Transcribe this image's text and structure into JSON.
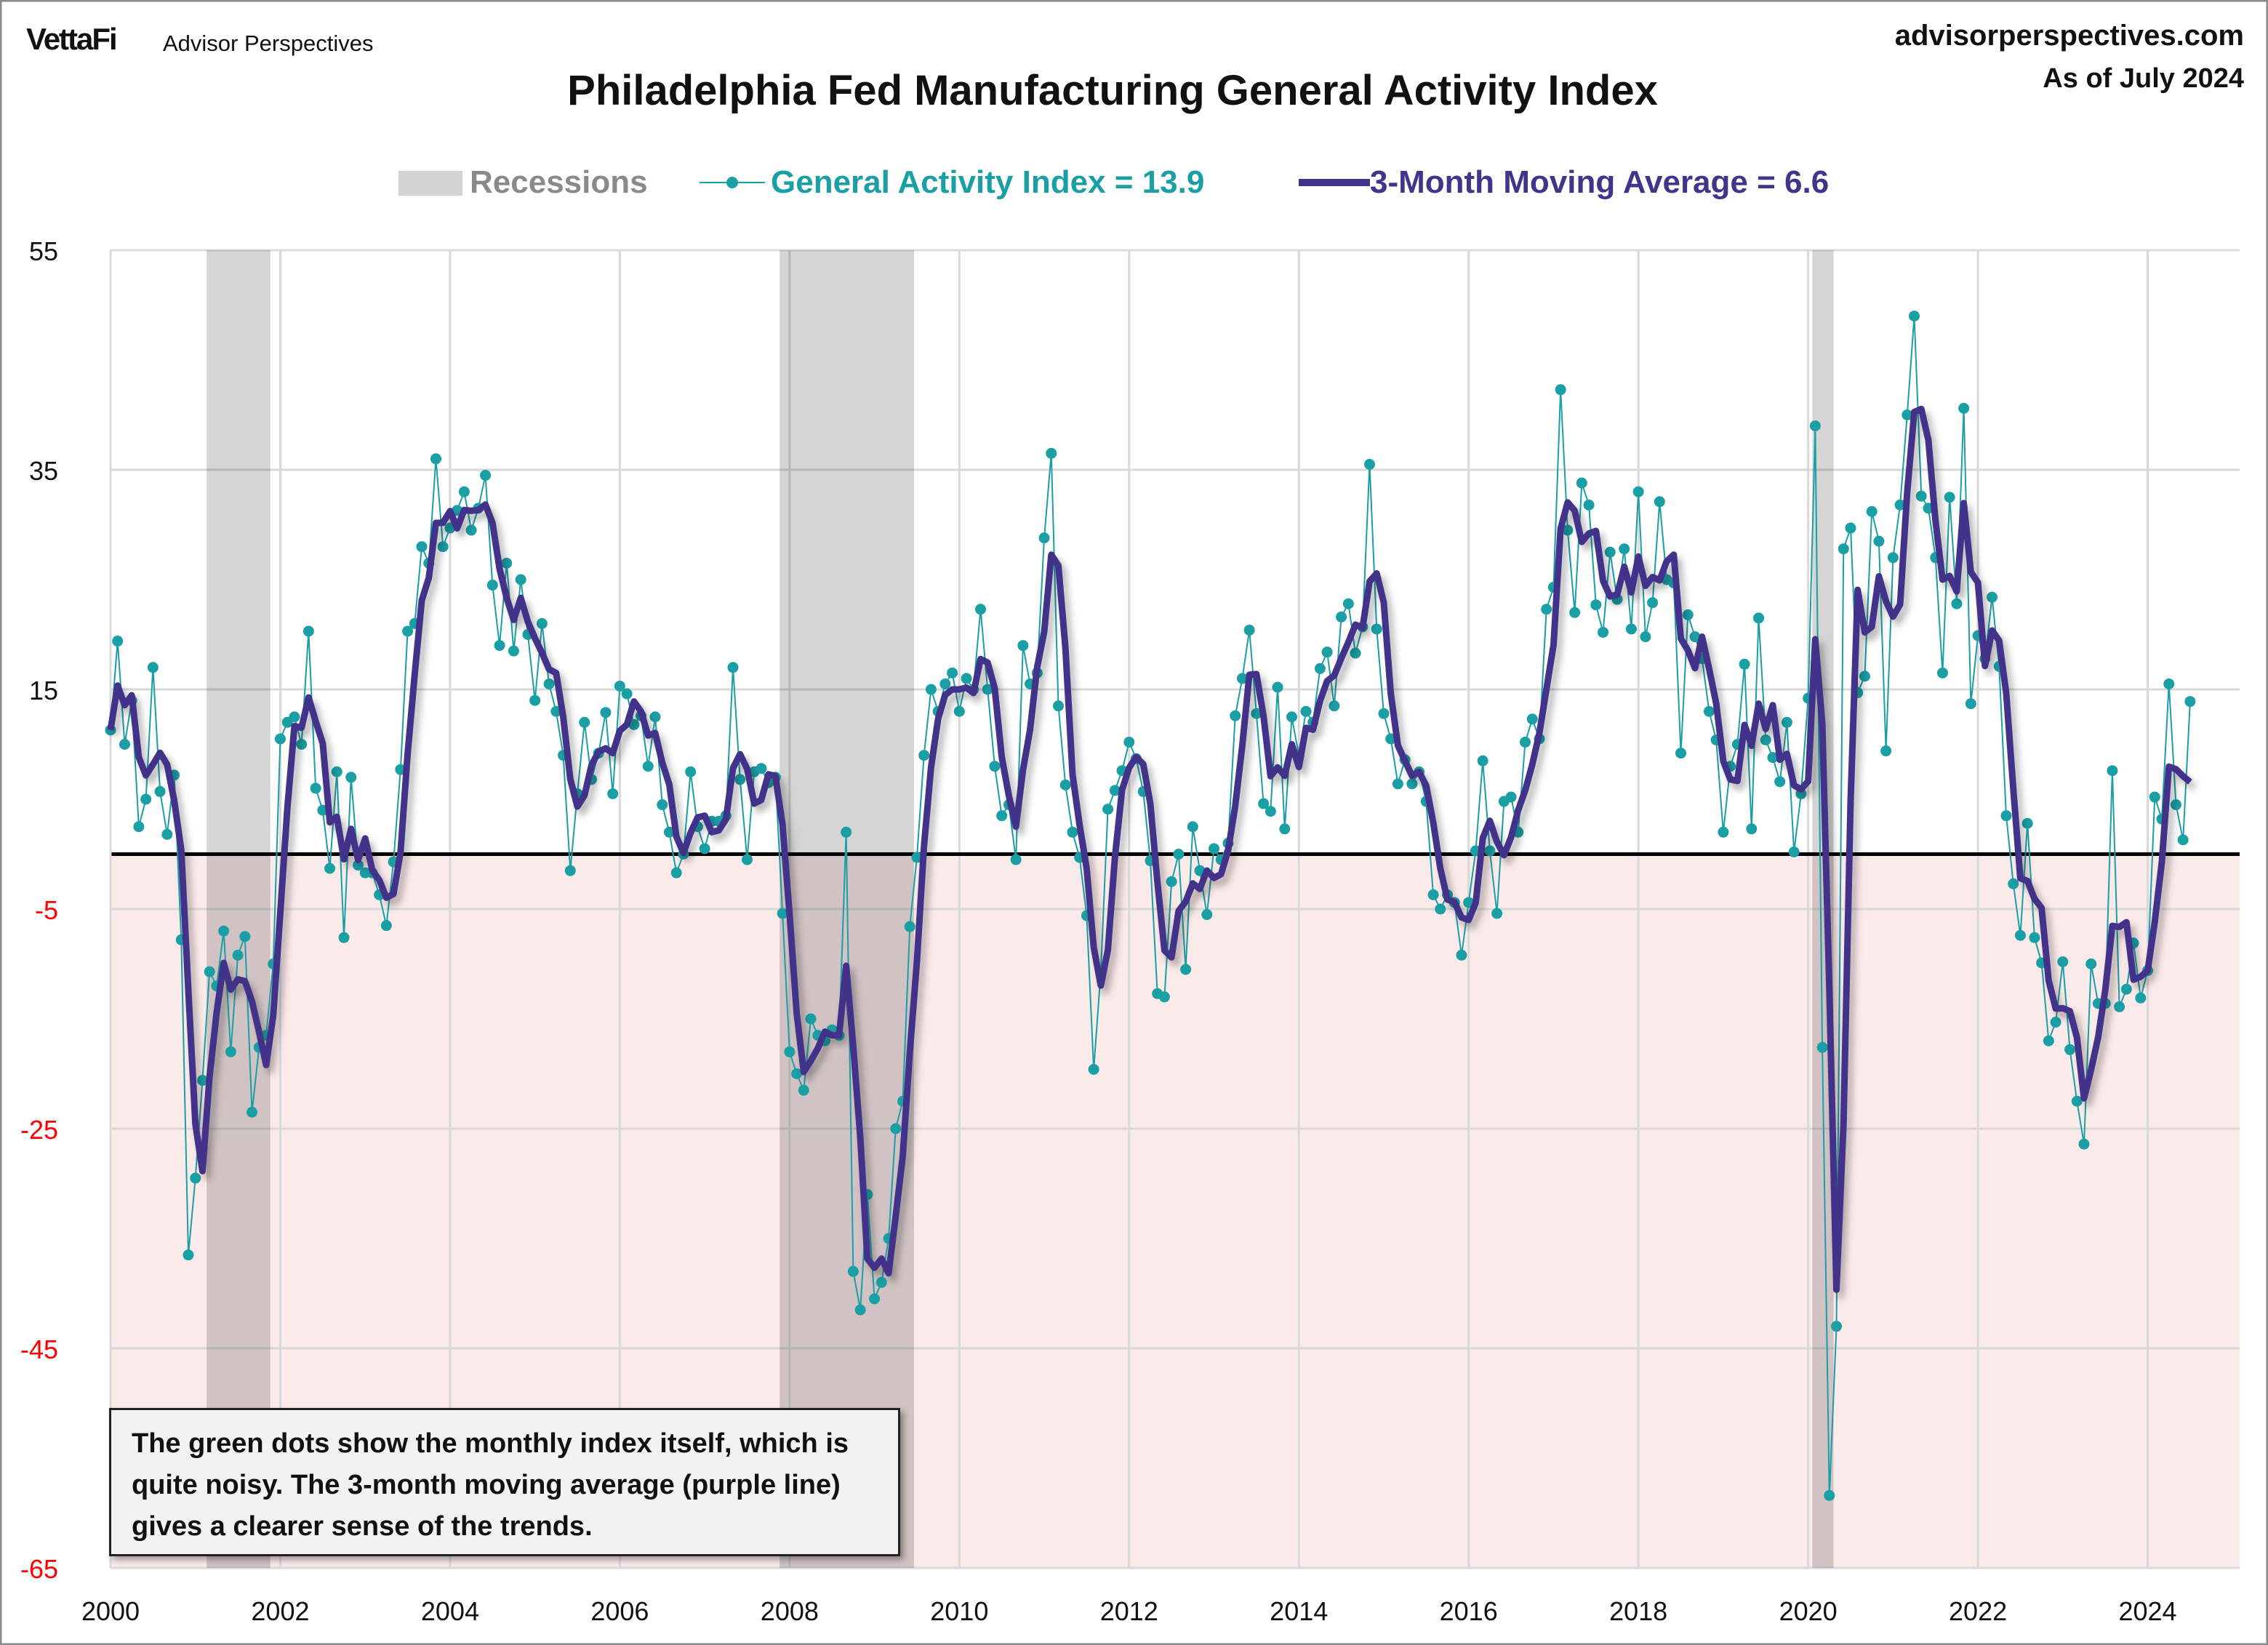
{
  "header": {
    "brand": "VettaFi",
    "brand_sub": "Advisor Perspectives",
    "site": "advisorperspectives.com",
    "as_of": "As of July 2024"
  },
  "note": "The green dots show the monthly  index itself, which is quite noisy. The 3-month moving average (purple line) gives a clearer sense of the trends.",
  "chart_data": {
    "type": "line",
    "title": "Philadelphia Fed Manufacturing General Activity Index",
    "legend": {
      "placement": "top",
      "recessions": "Recessions",
      "index": "General Activity Index = 13.9",
      "ma": "3-Month Moving Average = 6.6"
    },
    "colors": {
      "index": "#1a9fa5",
      "ma": "#43338a",
      "recession": "#d3d3d3",
      "negative_zone": "#fbeaea",
      "negative_tick": "#ff0000"
    },
    "x_start": "2000-01",
    "xlim": [
      "2000-01",
      "2025-02"
    ],
    "ylim": [
      -65,
      55
    ],
    "y_ticks": [
      55,
      35,
      15,
      -5,
      -25,
      -45,
      -65
    ],
    "x_ticks": [
      "2000",
      "2002",
      "2004",
      "2006",
      "2008",
      "2010",
      "2012",
      "2014",
      "2016",
      "2018",
      "2020",
      "2022",
      "2024"
    ],
    "grid": true,
    "reference_line": 0,
    "recessions": [
      [
        "2001-03",
        "2001-11"
      ],
      [
        "2007-12",
        "2009-06"
      ],
      [
        "2020-02",
        "2020-04"
      ]
    ],
    "series": [
      {
        "name": "General Activity Index",
        "frequency": "monthly",
        "values": [
          11.3,
          19.4,
          10,
          14,
          2.5,
          5,
          17,
          5.7,
          1.8,
          7.2,
          -7.8,
          -36.5,
          -29.5,
          -20.6,
          -10.7,
          -12,
          -7,
          -18,
          -9.2,
          -7.5,
          -23.5,
          -17.6,
          -16.5,
          -10,
          10.5,
          12,
          12.5,
          10,
          20.3,
          6,
          4,
          -1.3,
          7.5,
          -7.6,
          7,
          -1,
          -1.7,
          -1.7,
          -3.7,
          -6.5,
          -0.7,
          7.7,
          20.3,
          21,
          28,
          26.5,
          36,
          28,
          29.7,
          31.3,
          33,
          29.5,
          31.5,
          34.5,
          24.5,
          19,
          26.5,
          18.5,
          25,
          20,
          14,
          21,
          15.5,
          13,
          9,
          -1.5,
          5.5,
          12,
          6.8,
          9.2,
          12.9,
          5.5,
          15.3,
          14.6,
          11.8,
          12.6,
          8,
          12.5,
          4.5,
          2,
          -1.7,
          0,
          7.5,
          2.5,
          0.5,
          3,
          3,
          3.5,
          17,
          6.8,
          -0.5,
          7.5,
          7.8,
          6.5,
          7,
          -5.4,
          -18,
          -20,
          -21.5,
          -15,
          -16.5,
          -17,
          -16,
          -16.5,
          2,
          -38,
          -41.5,
          -31,
          -40.5,
          -39,
          -35,
          -25,
          -22.5,
          -6.6,
          -0.3,
          9,
          15,
          13,
          15.5,
          16.5,
          13,
          16,
          15,
          22.3,
          15,
          8,
          3.5,
          4.5,
          -0.5,
          19,
          15.5,
          16.5,
          28.8,
          36.5,
          13.5,
          6.3,
          2,
          -0.3,
          -5.6,
          -19.6,
          -10.7,
          4.1,
          5.8,
          7.6,
          10.2,
          8.7,
          5.7,
          -0.6,
          -12.7,
          -13,
          -2.5,
          0,
          -10.5,
          2.5,
          -1.5,
          -5.5,
          0.5,
          -0.5,
          1,
          12.6,
          16,
          20.4,
          12.8,
          4.6,
          3.9,
          15.2,
          2.3,
          12.5,
          9,
          13,
          12,
          16.9,
          18.4,
          13.5,
          21.6,
          22.8,
          18.3,
          20.7,
          35.5,
          20.5,
          12.8,
          10.5,
          6.4,
          8.6,
          6.4,
          7.5,
          4.8,
          -3.7,
          -5,
          -3.7,
          -4.4,
          -9.2,
          -4.4,
          0.3,
          8.5,
          0.3,
          -5.4,
          4.8,
          5.2,
          2,
          10.2,
          12.3,
          10.5,
          22.3,
          24.3,
          42.3,
          29.5,
          22,
          33.8,
          31.8,
          22.7,
          20.2,
          27.5,
          23.2,
          27.8,
          20.5,
          33,
          19.8,
          22.9,
          32.1,
          25,
          24.7,
          9.2,
          21.8,
          19.8,
          17.8,
          13,
          10.4,
          2,
          8,
          10,
          17.3,
          2.3,
          21.5,
          10.4,
          8.8,
          6.6,
          12,
          0.2,
          5.5,
          14.2,
          39,
          -17.6,
          -58.4,
          -43,
          27.8,
          29.7,
          14.7,
          16.2,
          31.2,
          28.5,
          9.4,
          27,
          31.8,
          40,
          49,
          32.6,
          31.5,
          27,
          16.5,
          32.5,
          22.8,
          40.6,
          13.7,
          19.9,
          17.8,
          23.4,
          17.1,
          3.5,
          -2.7,
          -7.4,
          2.8,
          -7.6,
          -9.9,
          -17,
          -15.3,
          -9.8,
          -17.8,
          -22.5,
          -26.4,
          -10,
          -13.6,
          -13.6,
          7.6,
          -13.9,
          -12.3,
          -8.1,
          -13.1,
          -10.6,
          5.2,
          3.2,
          15.5,
          4.5,
          1.3,
          13.9
        ]
      },
      {
        "name": "3-Month Moving Average",
        "window": 3,
        "source_series": "General Activity Index"
      }
    ]
  }
}
